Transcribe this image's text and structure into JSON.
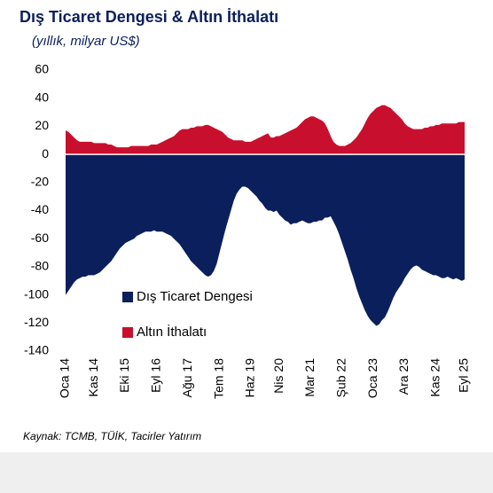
{
  "chart_data": {
    "type": "area",
    "title": "Dış Ticaret Dengesi & Altın İthalatı",
    "subtitle": "(yıllık, milyar US$)",
    "source": "Kaynak: TCMB, TÜİK, Tacirler Yatırım",
    "categories": [
      "Oca 14",
      null,
      null,
      null,
      null,
      null,
      null,
      null,
      null,
      null,
      "Kas 14",
      null,
      null,
      null,
      null,
      null,
      null,
      null,
      null,
      null,
      null,
      "Eki 15",
      null,
      null,
      null,
      null,
      null,
      null,
      null,
      null,
      null,
      null,
      "Eyl 16",
      null,
      null,
      null,
      null,
      null,
      null,
      null,
      null,
      null,
      null,
      "Ağu 17",
      null,
      null,
      null,
      null,
      null,
      null,
      null,
      null,
      null,
      null,
      "Tem 18",
      null,
      null,
      null,
      null,
      null,
      null,
      null,
      null,
      null,
      null,
      "Haz 19",
      null,
      null,
      null,
      null,
      null,
      null,
      null,
      null,
      null,
      "Nis 20",
      null,
      null,
      null,
      null,
      null,
      null,
      null,
      null,
      null,
      null,
      "Mar 21",
      null,
      null,
      null,
      null,
      null,
      null,
      null,
      null,
      null,
      null,
      "Şub 22",
      null,
      null,
      null,
      null,
      null,
      null,
      null,
      null,
      null,
      null,
      "Oca 23",
      null,
      null,
      null,
      null,
      null,
      null,
      null,
      null,
      null,
      null,
      "Ara 23",
      null,
      null,
      null,
      null,
      null,
      null,
      null,
      null,
      null,
      null,
      "Kas 24",
      null,
      null,
      null,
      null,
      null,
      null,
      null,
      null,
      null,
      "Eyl 25"
    ],
    "series": [
      {
        "name": "Dış Ticaret Dengesi",
        "color": "#0b1f5c",
        "values": [
          -100,
          -97,
          -94,
          -91,
          -89,
          -88,
          -87,
          -87,
          -86,
          -86,
          -86,
          -85,
          -84,
          -82,
          -80,
          -78,
          -76,
          -73,
          -70,
          -67,
          -65,
          -63,
          -62,
          -61,
          -60,
          -58,
          -57,
          -56,
          -55,
          -55,
          -55,
          -54,
          -55,
          -55,
          -55,
          -56,
          -57,
          -58,
          -60,
          -62,
          -64,
          -67,
          -70,
          -73,
          -76,
          -78,
          -80,
          -82,
          -84,
          -86,
          -87,
          -86,
          -83,
          -78,
          -70,
          -62,
          -54,
          -47,
          -40,
          -33,
          -28,
          -25,
          -23,
          -23,
          -24,
          -26,
          -28,
          -30,
          -33,
          -35,
          -38,
          -40,
          -40,
          -41,
          -40,
          -43,
          -45,
          -47,
          -48,
          -50,
          -49,
          -49,
          -48,
          -47,
          -48,
          -49,
          -49,
          -48,
          -48,
          -47,
          -47,
          -45,
          -45,
          -44,
          -48,
          -52,
          -57,
          -63,
          -69,
          -75,
          -82,
          -88,
          -95,
          -101,
          -106,
          -111,
          -115,
          -118,
          -120,
          -122,
          -121,
          -118,
          -116,
          -112,
          -107,
          -102,
          -98,
          -95,
          -92,
          -88,
          -85,
          -82,
          -80,
          -79,
          -80,
          -82,
          -83,
          -84,
          -85,
          -86,
          -86,
          -87,
          -88,
          -88,
          -87,
          -88,
          -89,
          -88,
          -89,
          -90,
          -89
        ]
      },
      {
        "name": "Altın İthalatı",
        "color": "#c8102e",
        "values": [
          17,
          16,
          14,
          12,
          10,
          9,
          9,
          9,
          9,
          9,
          8,
          8,
          8,
          8,
          8,
          7,
          7,
          6,
          5,
          5,
          5,
          5,
          5,
          6,
          6,
          6,
          6,
          6,
          6,
          6,
          7,
          7,
          7,
          8,
          9,
          10,
          11,
          12,
          13,
          15,
          17,
          18,
          18,
          18,
          19,
          19,
          20,
          20,
          20,
          21,
          21,
          20,
          19,
          18,
          17,
          16,
          14,
          12,
          11,
          10,
          10,
          10,
          10,
          9,
          9,
          9,
          10,
          11,
          12,
          13,
          14,
          15,
          12,
          12,
          13,
          13,
          14,
          15,
          16,
          17,
          18,
          19,
          21,
          23,
          25,
          26,
          27,
          27,
          26,
          25,
          24,
          22,
          18,
          13,
          9,
          7,
          6,
          6,
          6,
          7,
          8,
          10,
          12,
          15,
          18,
          22,
          26,
          29,
          31,
          33,
          34,
          35,
          35,
          34,
          33,
          31,
          29,
          27,
          25,
          22,
          20,
          19,
          18,
          18,
          18,
          18,
          19,
          19,
          20,
          20,
          21,
          21,
          22,
          22,
          22,
          22,
          22,
          22,
          23,
          23,
          23
        ]
      }
    ],
    "ylim": [
      -140,
      60
    ],
    "yticks": [
      60,
      40,
      20,
      0,
      -20,
      -40,
      -60,
      -80,
      -100,
      -120,
      -140
    ]
  }
}
